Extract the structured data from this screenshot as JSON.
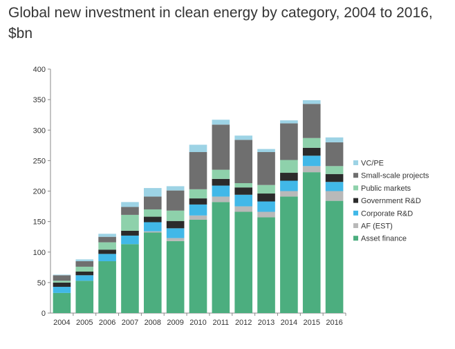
{
  "chart_data": {
    "type": "bar",
    "stacked": true,
    "title": "Global new investment in clean energy by category, 2004 to 2016, $bn",
    "xlabel": "",
    "ylabel": "",
    "ylim": [
      0,
      400
    ],
    "yticks": [
      0,
      50,
      100,
      150,
      200,
      250,
      300,
      350,
      400
    ],
    "grid": false,
    "legend_position": "right",
    "categories": [
      "2004",
      "2005",
      "2006",
      "2007",
      "2008",
      "2009",
      "2010",
      "2011",
      "2012",
      "2013",
      "2014",
      "2015",
      "2016"
    ],
    "series": [
      {
        "name": "Asset finance",
        "color": "#4cae7f",
        "values": [
          33,
          53,
          85,
          113,
          132,
          118,
          153,
          182,
          166,
          157,
          191,
          231,
          184
        ]
      },
      {
        "name": "AF (EST)",
        "color": "#b9b9b9",
        "values": [
          0,
          0,
          0,
          0,
          2,
          5,
          7,
          9,
          9,
          9,
          9,
          10,
          16
        ]
      },
      {
        "name": "Corporate R&D",
        "color": "#41b8e8",
        "values": [
          10,
          9,
          12,
          14,
          15,
          16,
          18,
          18,
          19,
          17,
          17,
          17,
          15
        ]
      },
      {
        "name": "Government R&D",
        "color": "#2b2b2b",
        "values": [
          7,
          6,
          7,
          8,
          9,
          12,
          10,
          11,
          12,
          13,
          13,
          13,
          13
        ]
      },
      {
        "name": "Public markets",
        "color": "#8ed1ab",
        "values": [
          3,
          8,
          12,
          26,
          12,
          17,
          15,
          15,
          7,
          14,
          21,
          16,
          13
        ]
      },
      {
        "name": "Small-scale projects",
        "color": "#6f6f6f",
        "values": [
          9,
          9,
          9,
          13,
          21,
          33,
          61,
          74,
          71,
          54,
          60,
          56,
          39
        ]
      },
      {
        "name": "VC/PE",
        "color": "#9dd3e5",
        "values": [
          1,
          3,
          5,
          8,
          14,
          7,
          12,
          8,
          7,
          5,
          5,
          6,
          8
        ]
      }
    ]
  }
}
